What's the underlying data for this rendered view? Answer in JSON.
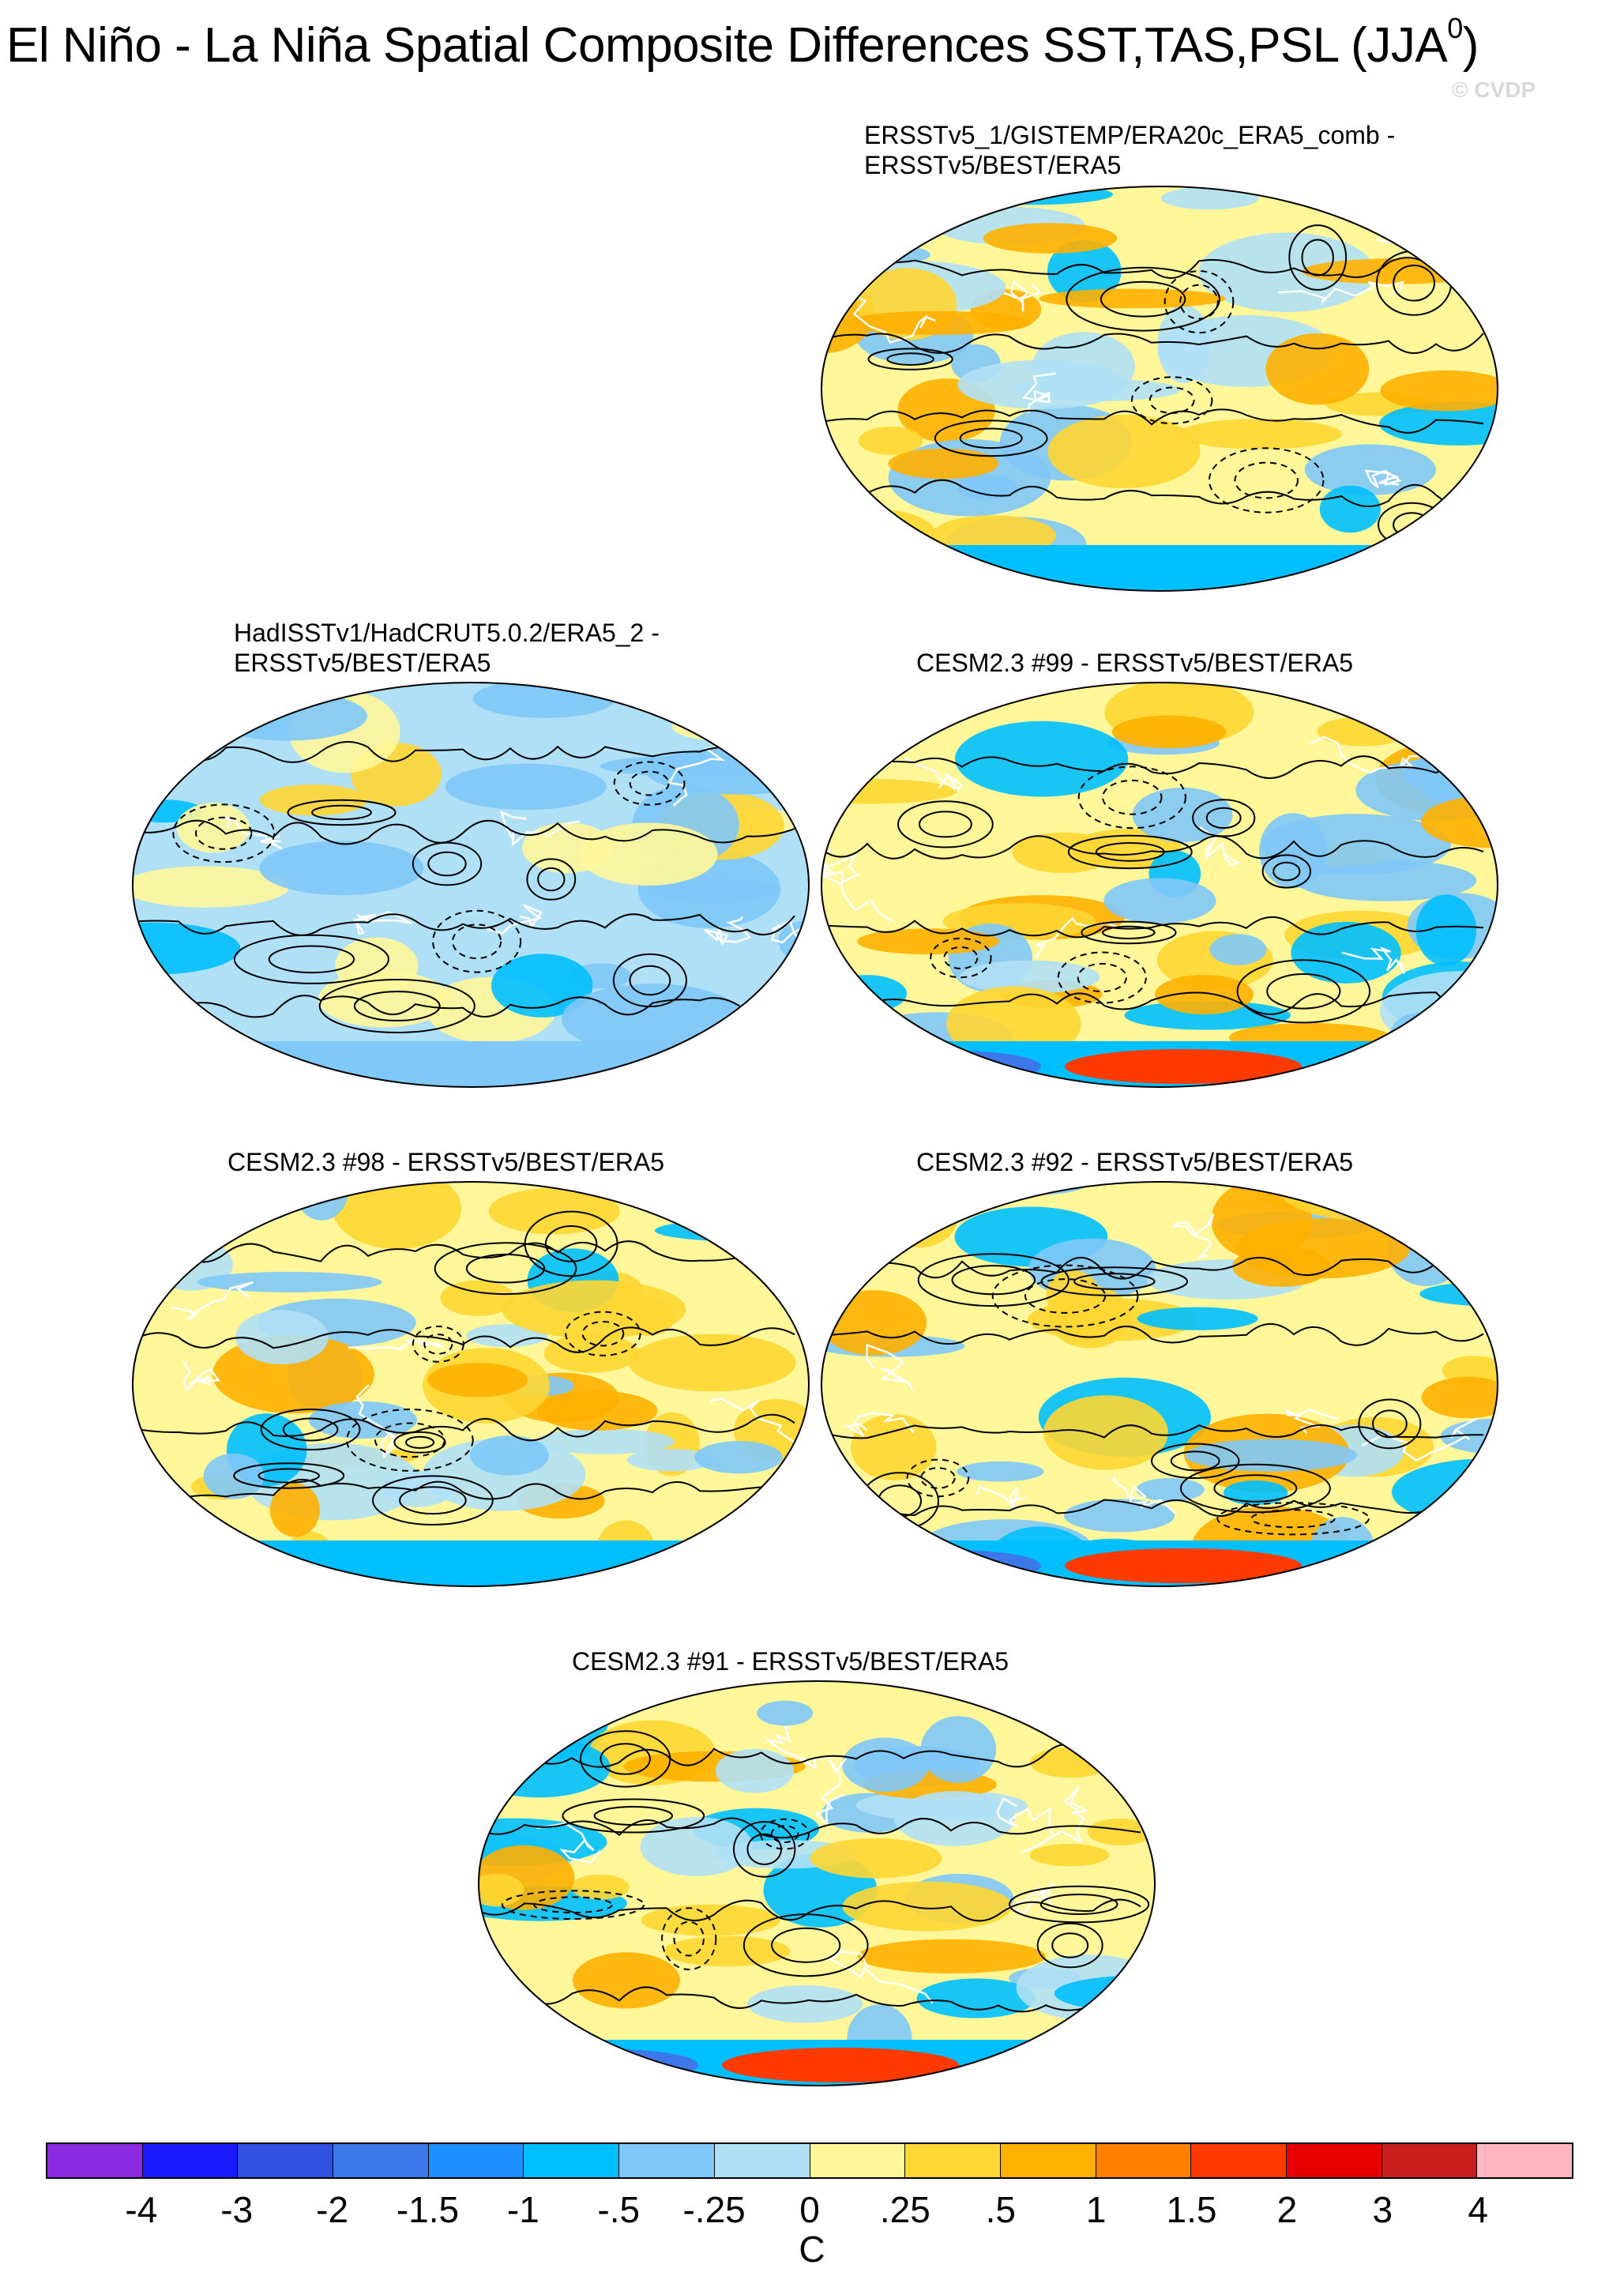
{
  "title": "El Niño - La Niña Spatial Composite Differences SST,TAS,PSL (JJA",
  "title_superscript": "0",
  "title_close": ")",
  "watermark": "© CVDP",
  "panels": [
    {
      "title_line1": "ERSSTv5_1/GISTEMP/ERA20c_ERA5_comb -",
      "title_line2": "ERSSTv5/BEST/ERA5"
    },
    {
      "title_line1": "HadISSTv1/HadCRUT5.0.2/ERA5_2 -",
      "title_line2": "ERSSTv5/BEST/ERA5"
    },
    {
      "title_line1": "CESM2.3 #99 - ERSSTv5/BEST/ERA5",
      "title_line2": ""
    },
    {
      "title_line1": "CESM2.3 #98 - ERSSTv5/BEST/ERA5",
      "title_line2": ""
    },
    {
      "title_line1": "CESM2.3 #92 - ERSSTv5/BEST/ERA5",
      "title_line2": ""
    },
    {
      "title_line1": "CESM2.3 #91 - ERSSTv5/BEST/ERA5",
      "title_line2": ""
    }
  ],
  "colorbar": {
    "unit": "C",
    "tick_labels": [
      "-4",
      "-3",
      "-2",
      "-1.5",
      "-1",
      "-.5",
      "-.25",
      "0",
      ".25",
      ".5",
      "1",
      "1.5",
      "2",
      "3",
      "4"
    ],
    "colors": [
      "#8a2be2",
      "#1a1aff",
      "#2f50e0",
      "#3c78ea",
      "#1e90ff",
      "#00bfff",
      "#7fc8f8",
      "#b0e0f6",
      "#fff79a",
      "#ffd633",
      "#ffb000",
      "#ff7f00",
      "#ff3a00",
      "#e60000",
      "#c81e1e",
      "#ffb6c1"
    ]
  }
}
